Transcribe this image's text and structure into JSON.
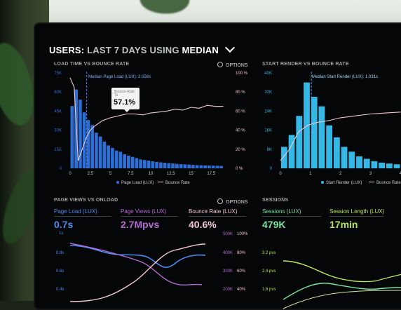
{
  "header": {
    "title_prefix": "USERS:",
    "title_range": "LAST 7 DAYS",
    "title_using": "USING",
    "title_stat": "MEDIAN"
  },
  "panel_load": {
    "title": "LOAD TIME VS BOUNCE RATE",
    "options": "OPTIONS",
    "median_label": "Median Page Load (LUX): 2.056s",
    "tooltip": {
      "label": "Bounce Rate",
      "sub": "7s",
      "value": "57.1%"
    },
    "legend": {
      "a": "Page Load (LUX)",
      "b": "Bounce Rate"
    },
    "colors": {
      "bar": "#2e6fd6",
      "line": "#f0c8cf",
      "median": "#4a89ff"
    }
  },
  "panel_render": {
    "title": "START RENDER VS BOUNCE RATE",
    "median_label": "Median Start Render (LUX): 1.031s",
    "legend": {
      "a": "Start Render (LUX)",
      "b": "Bounce Rate"
    },
    "colors": {
      "bar": "#34b8e6",
      "line": "#f0c8cf",
      "median": "#3aa7e8"
    }
  },
  "panel_views": {
    "title": "PAGE VIEWS VS ONLOAD",
    "options": "OPTIONS",
    "kpis": [
      {
        "label": "Page Load (LUX)",
        "value": "0.7s",
        "color": "#4b8ef5"
      },
      {
        "label": "Page Views (LUX)",
        "value": "2.7Mpvs",
        "color": "#b56ad6"
      },
      {
        "label": "Bounce Rate (LUX)",
        "value": "40.6%",
        "color": "#f4c6d3"
      }
    ],
    "left_axis": [
      "1s",
      "0.8s",
      "0.6s",
      "0.4s"
    ],
    "mid_axis": [
      "500K",
      "400K",
      "300K",
      "200K"
    ],
    "right_axis": [
      "100%",
      "80%",
      "60%",
      "40%"
    ]
  },
  "panel_sessions": {
    "title": "SESSIONS",
    "kpis": [
      {
        "label": "Sessions (LUX)",
        "value": "479K",
        "color": "#79e6a2"
      },
      {
        "label": "Session Length (LUX)",
        "value": "17min",
        "color": "#b8e84f"
      }
    ],
    "axis": [
      "3.2 pvs",
      "2.4 pvs",
      "1.6 pvs"
    ]
  },
  "chart_data": [
    {
      "type": "bar",
      "title": "LOAD TIME VS BOUNCE RATE",
      "x_ticks": [
        "0",
        "2.5",
        "5",
        "7.5",
        "10",
        "12.5",
        "15",
        "17.5"
      ],
      "xlim": [
        0,
        20
      ],
      "y_left_ticks": [
        "0",
        "15K",
        "30K",
        "45K",
        "60K",
        "75K"
      ],
      "ylim_left": [
        0,
        75000
      ],
      "y_right_ticks": [
        "0 %",
        "20 %",
        "40 %",
        "60 %",
        "80 %",
        "100 %"
      ],
      "ylim_right": [
        0,
        100
      ],
      "bar_x": [
        0.25,
        0.75,
        1.25,
        1.75,
        2.25,
        2.75,
        3.25,
        3.75,
        4.25,
        4.75,
        5.25,
        5.75,
        6.25,
        6.75,
        7.25,
        7.75,
        8.25,
        8.75,
        9.25,
        9.75,
        10.25,
        10.75,
        11.25,
        11.75,
        12.25,
        12.75,
        13.25,
        13.75,
        14.25,
        14.75,
        15.25,
        15.75,
        16.25,
        16.75,
        17.25,
        17.75,
        18.25,
        18.75
      ],
      "series": [
        {
          "name": "Page Load (LUX)",
          "values": [
            49000,
            62000,
            54000,
            44000,
            38000,
            34000,
            28000,
            25000,
            21000,
            18000,
            16000,
            14000,
            13000,
            11000,
            10000,
            9000,
            8000,
            7000,
            6500,
            6000,
            5500,
            5000,
            4700,
            4400,
            4100,
            3800,
            3500,
            3300,
            3100,
            2900,
            2700,
            2500,
            2400,
            2300,
            2200,
            2100,
            2000,
            1900
          ]
        },
        {
          "name": "Bounce Rate",
          "x": [
            0,
            0.5,
            1,
            1.5,
            2,
            2.5,
            3,
            3.5,
            4,
            5,
            6,
            7,
            8,
            9,
            10,
            11,
            12,
            13,
            14,
            15,
            16,
            17,
            18,
            19
          ],
          "values": [
            95,
            85,
            8,
            20,
            32,
            40,
            44,
            47,
            50,
            53,
            55,
            57,
            57,
            56,
            58,
            59,
            60,
            62,
            61,
            64,
            63,
            66,
            65,
            65
          ]
        }
      ],
      "median_x": 2.056
    },
    {
      "type": "bar",
      "title": "START RENDER VS BOUNCE RATE",
      "x_ticks": [
        "0",
        "1",
        "2",
        "3",
        "4"
      ],
      "xlim": [
        0,
        4.2
      ],
      "y_left_ticks": [
        "0",
        "8K",
        "16K",
        "24K",
        "32K",
        "40K"
      ],
      "ylim_left": [
        0,
        40000
      ],
      "bar_x": [
        0.125,
        0.375,
        0.625,
        0.875,
        1.125,
        1.375,
        1.625,
        1.875,
        2.125,
        2.375,
        2.625,
        2.875,
        3.125,
        3.375,
        3.625,
        3.875,
        4.125
      ],
      "series": [
        {
          "name": "Start Render (LUX)",
          "values": [
            9000,
            14000,
            22000,
            36000,
            30000,
            26000,
            18000,
            13000,
            9000,
            7000,
            5000,
            4000,
            3000,
            2400,
            2000,
            1700,
            1500
          ]
        },
        {
          "name": "Bounce Rate",
          "x": [
            0,
            0.3,
            0.6,
            0.9,
            1.2,
            1.6,
            2,
            2.5,
            3,
            3.5,
            4
          ],
          "values": [
            8,
            20,
            38,
            45,
            48,
            50,
            53,
            55,
            57,
            58,
            59
          ]
        }
      ],
      "median_x": 1.031
    }
  ]
}
